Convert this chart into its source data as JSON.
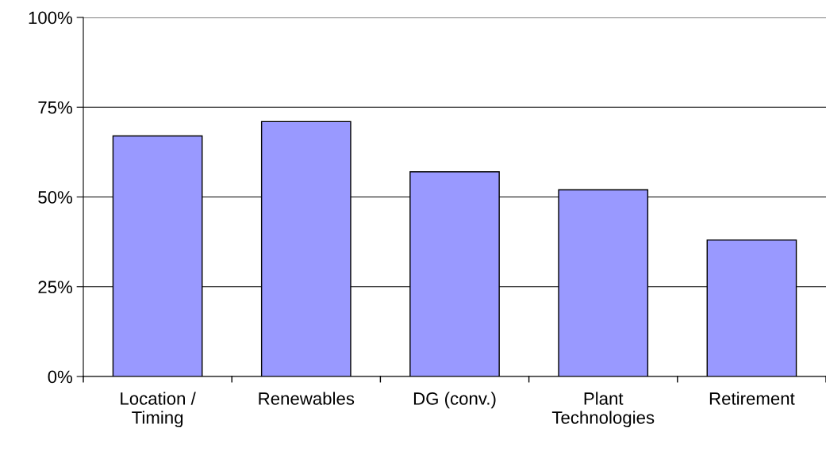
{
  "chart_data": {
    "type": "bar",
    "categories": [
      "Location /\nTiming",
      "Renewables",
      "DG (conv.)",
      "Plant\nTechnologies",
      "Retirement"
    ],
    "values": [
      67,
      71,
      57,
      52,
      38
    ],
    "color": "#9999ff",
    "ylim": [
      0,
      100
    ],
    "yticks": [
      {
        "value": 0,
        "label": "0%"
      },
      {
        "value": 25,
        "label": "25%"
      },
      {
        "value": 50,
        "label": "50%"
      },
      {
        "value": 75,
        "label": "75%"
      },
      {
        "value": 100,
        "label": "100%"
      }
    ],
    "grid": "y"
  }
}
